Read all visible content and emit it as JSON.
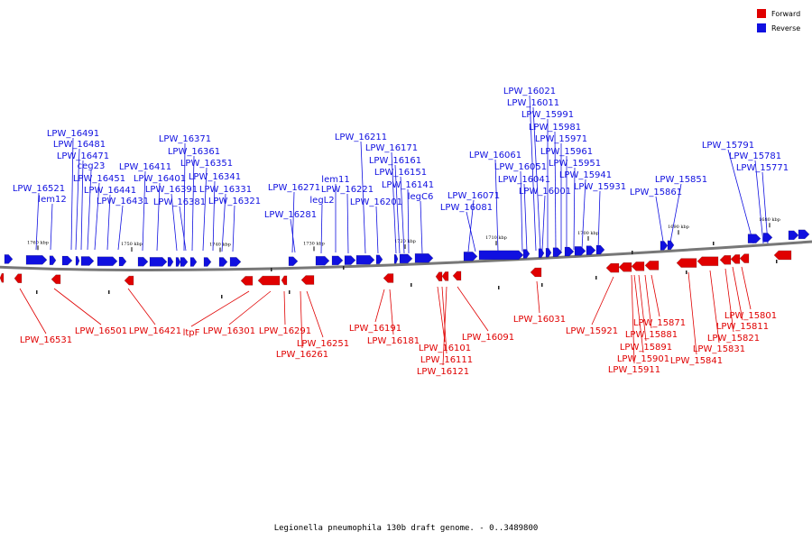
{
  "caption": "Legionella pneumophila 130b draft genome. - 0..3489800",
  "legend": {
    "forward_label": "Forward",
    "reverse_label": "Reverse",
    "forward_color": "#e00000",
    "reverse_color": "#1010e0"
  },
  "ticks": [
    "1760 kbp",
    "1750 kbp",
    "1740 kbp",
    "1730 kbp",
    "1720 kbp",
    "1710 kbp",
    "1700 kbp",
    "1690 kbp",
    "1680 kbp"
  ],
  "reverse_labels": [
    "LPW_16491",
    "LPW_16481",
    "LPW_16471",
    "ceg23",
    "LPW_16451",
    "LPW_16441",
    "LPW_16431",
    "LPW_16521",
    "lem12",
    "LPW_16411",
    "LPW_16401",
    "LPW_16391",
    "LPW_16381",
    "LPW_16371",
    "LPW_16361",
    "LPW_16351",
    "LPW_16341",
    "LPW_16331",
    "LPW_16321",
    "LPW_16271",
    "LPW_16281",
    "lem11",
    "legL2",
    "LPW_16221",
    "LPW_16211",
    "LPW_16201",
    "LPW_16171",
    "LPW_16161",
    "LPW_16151",
    "LPW_16141",
    "legC6",
    "LPW_16071",
    "LPW_16081",
    "LPW_16061",
    "LPW_16051",
    "LPW_16041",
    "LPW_16001",
    "LPW_16021",
    "LPW_16011",
    "LPW_15991",
    "LPW_15981",
    "LPW_15971",
    "LPW_15961",
    "LPW_15951",
    "LPW_15941",
    "LPW_15931",
    "LPW_15861",
    "LPW_15851",
    "LPW_15791",
    "LPW_15781",
    "LPW_15771"
  ],
  "forward_labels": [
    "LPW_16531",
    "LPW_16501",
    "LPW_16421",
    "ltpF",
    "LPW_16301",
    "LPW_16291",
    "LPW_16251",
    "LPW_16261",
    "LPW_16191",
    "LPW_16181",
    "LPW_16101",
    "LPW_16111",
    "LPW_16121",
    "LPW_16091",
    "LPW_16031",
    "LPW_15921",
    "LPW_15871",
    "LPW_15881",
    "LPW_15891",
    "LPW_15901",
    "LPW_15911",
    "LPW_15841",
    "LPW_15831",
    "LPW_15821",
    "LPW_15811",
    "LPW_15801"
  ]
}
